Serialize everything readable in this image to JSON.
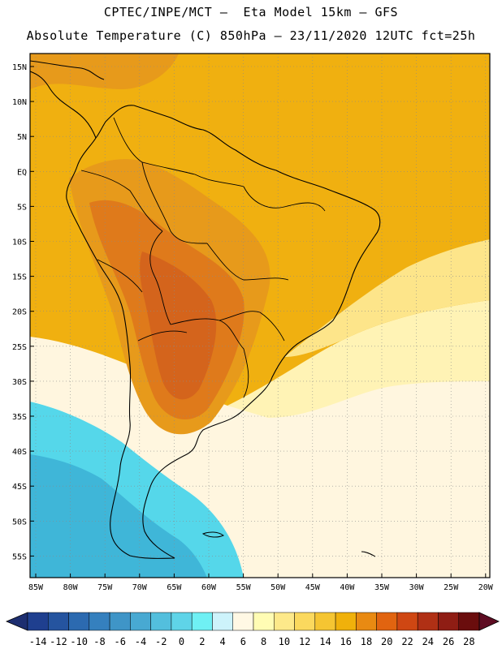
{
  "title_line1": "CPTEC/INPE/MCT –  Eta Model 15km – GFS",
  "title_line2": "Absolute Temperature (C) 850hPa – 23/11/2020 12UTC fct=25h",
  "lat_labels": [
    "15N",
    "10N",
    "5N",
    "EQ",
    "5S",
    "10S",
    "15S",
    "20S",
    "25S",
    "30S",
    "35S",
    "40S",
    "45S",
    "50S",
    "55S"
  ],
  "lon_labels": [
    "85W",
    "80W",
    "75W",
    "70W",
    "65W",
    "60W",
    "55W",
    "50W",
    "45W",
    "40W",
    "35W",
    "30W",
    "25W",
    "20W"
  ],
  "colorbar": {
    "labels": [
      "-14",
      "-12",
      "-10",
      "-8",
      "-6",
      "-4",
      "-2",
      "0",
      "2",
      "4",
      "6",
      "8",
      "10",
      "12",
      "14",
      "16",
      "18",
      "20",
      "22",
      "24",
      "26",
      "28"
    ],
    "colors": [
      "#1f3f8f",
      "#25549f",
      "#2c6ab0",
      "#3580be",
      "#3f95c7",
      "#48a9d2",
      "#53bfdd",
      "#5fd4e8",
      "#6ff0f4",
      "#cdf3fb",
      "#fff8e4",
      "#fffcb4",
      "#fde98a",
      "#fbd95e",
      "#f5c532",
      "#f0b10b",
      "#e98a12",
      "#e16410",
      "#cf4713",
      "#b03015",
      "#8f1d14",
      "#6a0d0d"
    ],
    "under_color": "#1d2e70",
    "over_color": "#5e0c22"
  },
  "palette": {
    "cold_deep": "#3fb6d8",
    "cold_mid": "#55d7ea",
    "cold_light": "#9ff0f8",
    "pale": "#fff6df",
    "pale_yellow": "#fff3b5",
    "light_yellow": "#fde58a",
    "orange": "#f0b010",
    "warm_orange": "#e79a1b",
    "hot": "#df7a1b",
    "hotter": "#d4641c",
    "coast": "#000000",
    "grid": "#8a8a8a"
  }
}
